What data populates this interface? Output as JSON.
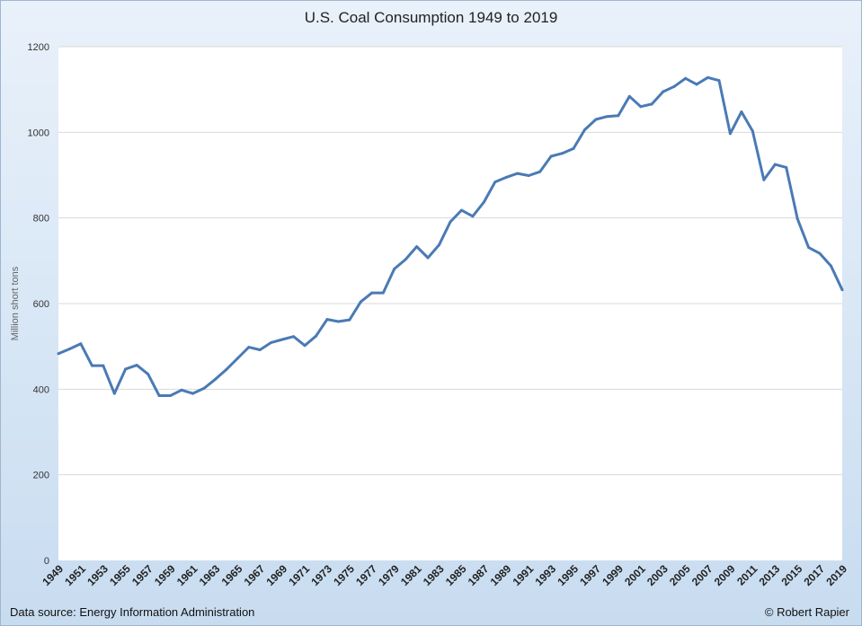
{
  "chart_data": {
    "type": "line",
    "title": "U.S. Coal Consumption 1949 to 2019",
    "xlabel": "",
    "ylabel": "Million short tons",
    "ylim": [
      0,
      1200
    ],
    "yticks": [
      0,
      200,
      400,
      600,
      800,
      1000,
      1200
    ],
    "grid": true,
    "line_color": "#4a7ab5",
    "x": [
      1949,
      1950,
      1951,
      1952,
      1953,
      1954,
      1955,
      1956,
      1957,
      1958,
      1959,
      1960,
      1961,
      1962,
      1963,
      1964,
      1965,
      1966,
      1967,
      1968,
      1969,
      1970,
      1971,
      1972,
      1973,
      1974,
      1975,
      1976,
      1977,
      1978,
      1979,
      1980,
      1981,
      1982,
      1983,
      1984,
      1985,
      1986,
      1987,
      1988,
      1989,
      1990,
      1991,
      1992,
      1993,
      1994,
      1995,
      1996,
      1997,
      1998,
      1999,
      2000,
      2001,
      2002,
      2003,
      2004,
      2005,
      2006,
      2007,
      2008,
      2009,
      2010,
      2011,
      2012,
      2013,
      2014,
      2015,
      2016,
      2017,
      2018,
      2019
    ],
    "values": [
      483,
      494,
      506,
      455,
      455,
      390,
      447,
      456,
      435,
      385,
      385,
      398,
      390,
      402,
      423,
      446,
      472,
      498,
      492,
      509,
      516,
      523,
      502,
      524,
      563,
      558,
      562,
      604,
      625,
      625,
      681,
      703,
      733,
      707,
      737,
      791,
      818,
      804,
      837,
      884,
      895,
      904,
      899,
      908,
      944,
      951,
      962,
      1006,
      1030,
      1037,
      1039,
      1084,
      1060,
      1066,
      1095,
      1107,
      1126,
      1112,
      1128,
      1121,
      997,
      1048,
      1003,
      889,
      925,
      918,
      798,
      731,
      717,
      688,
      632
    ]
  },
  "footer": {
    "source": "Data source: Energy Information Administration",
    "credit": "© Robert Rapier"
  }
}
